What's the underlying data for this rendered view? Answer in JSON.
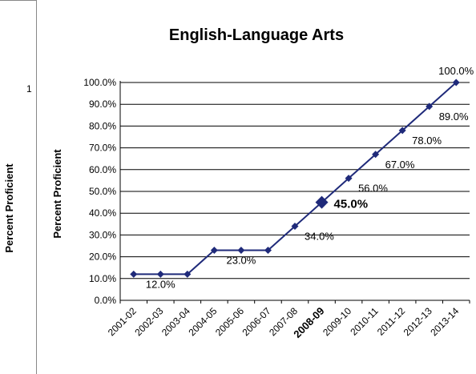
{
  "outer": {
    "ylabel": "Percent Proficient",
    "tick": "1"
  },
  "chart_data": {
    "type": "line",
    "title": "English-Language Arts",
    "ylabel": "Percent Proficient",
    "xlabel": "",
    "categories": [
      "2001-02",
      "2002-03",
      "2003-04",
      "2004-05",
      "2005-06",
      "2006-07",
      "2007-08",
      "2008-09",
      "2009-10",
      "2010-11",
      "2011-12",
      "2012-13",
      "2013-14"
    ],
    "values": [
      12.0,
      12.0,
      12.0,
      23.0,
      23.0,
      23.0,
      34.0,
      45.0,
      56.0,
      67.0,
      78.0,
      89.0,
      100.0
    ],
    "ylim": [
      0,
      100
    ],
    "yticks": [
      "0.0%",
      "10.0%",
      "20.0%",
      "30.0%",
      "40.0%",
      "50.0%",
      "60.0%",
      "70.0%",
      "80.0%",
      "90.0%",
      "100.0%"
    ],
    "data_labels": [
      {
        "index": 1,
        "text": "12.0%"
      },
      {
        "index": 4,
        "text": "23.0%"
      },
      {
        "index": 6,
        "text": "34.0%"
      },
      {
        "index": 7,
        "text": "45.0%",
        "highlight": true
      },
      {
        "index": 8,
        "text": "56.0%"
      },
      {
        "index": 9,
        "text": "67.0%"
      },
      {
        "index": 10,
        "text": "78.0%"
      },
      {
        "index": 11,
        "text": "89.0%"
      },
      {
        "index": 12,
        "text": "100.0%"
      }
    ],
    "highlight_category": "2008-09",
    "grid": true,
    "line_color": "#1f2a7a"
  }
}
